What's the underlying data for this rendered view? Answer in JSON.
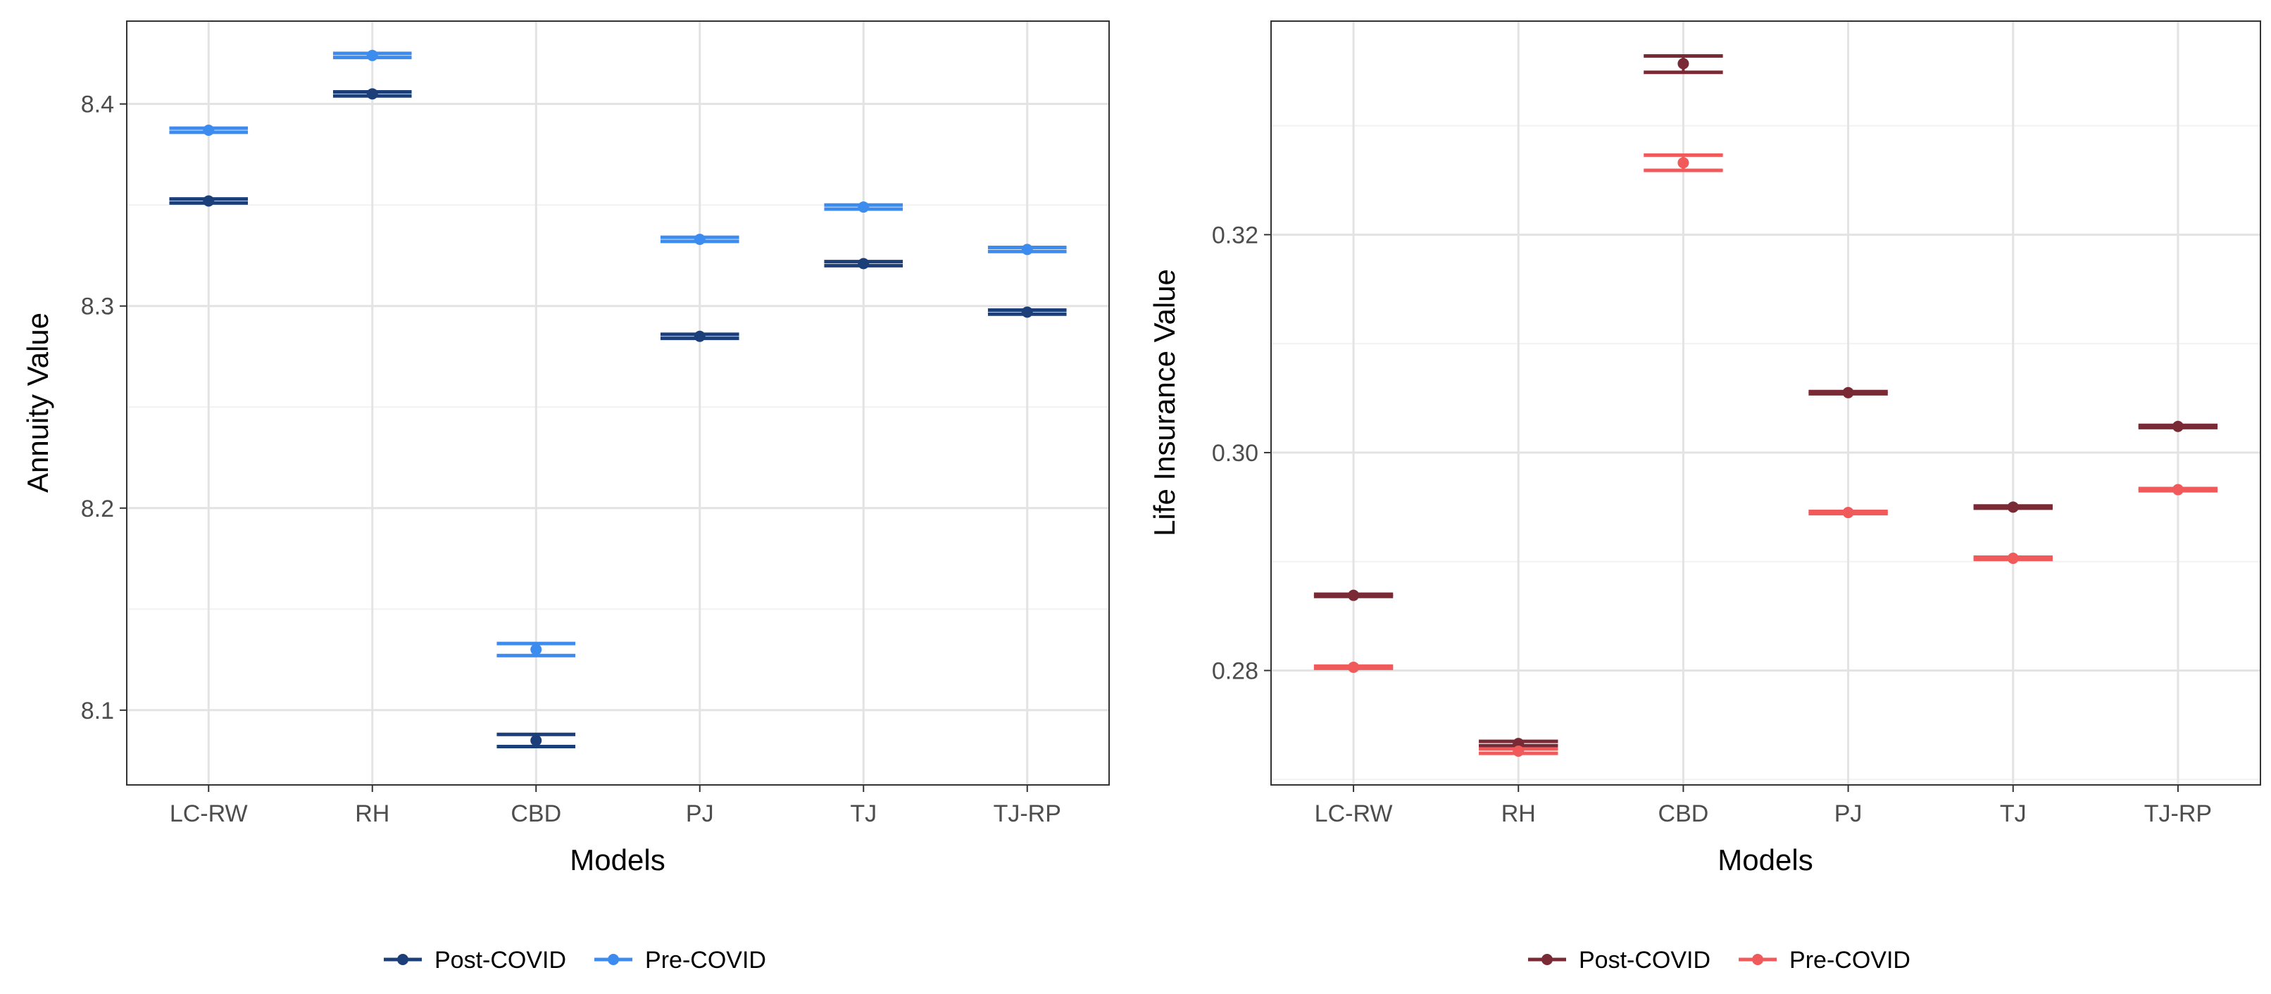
{
  "chart_data": [
    {
      "type": "errorbar",
      "title": "",
      "xlabel": "Models",
      "ylabel": "Annuity Value",
      "categories": [
        "LC-RW",
        "RH",
        "CBD",
        "PJ",
        "TJ",
        "TJ-RP"
      ],
      "ylim": [
        8.063,
        8.441
      ],
      "yticks": [
        8.1,
        8.2,
        8.3,
        8.4
      ],
      "ytick_labels": [
        "8.1",
        "8.2",
        "8.3",
        "8.4"
      ],
      "grid": true,
      "legend_position": "bottom",
      "series": [
        {
          "name": "Post-COVID",
          "color": "#1c3f7a",
          "values": [
            8.352,
            8.405,
            8.085,
            8.285,
            8.321,
            8.297
          ],
          "lower": [
            8.351,
            8.404,
            8.082,
            8.284,
            8.32,
            8.296
          ],
          "upper": [
            8.353,
            8.406,
            8.088,
            8.286,
            8.322,
            8.298
          ]
        },
        {
          "name": "Pre-COVID",
          "color": "#3c8cf0",
          "values": [
            8.387,
            8.424,
            8.13,
            8.333,
            8.349,
            8.328
          ],
          "lower": [
            8.386,
            8.423,
            8.127,
            8.332,
            8.348,
            8.327
          ],
          "upper": [
            8.388,
            8.425,
            8.133,
            8.334,
            8.35,
            8.329
          ]
        }
      ]
    },
    {
      "type": "errorbar",
      "title": "",
      "xlabel": "Models",
      "ylabel": "Life Insurance Value",
      "categories": [
        "LC-RW",
        "RH",
        "CBD",
        "PJ",
        "TJ",
        "TJ-RP"
      ],
      "ylim": [
        0.2695,
        0.3396
      ],
      "yticks": [
        0.28,
        0.3,
        0.32
      ],
      "ytick_labels": [
        "0.28",
        "0.30",
        "0.32"
      ],
      "grid": true,
      "legend_position": "bottom",
      "series": [
        {
          "name": "Post-COVID",
          "color": "#7a2a35",
          "values": [
            0.2869,
            0.2733,
            0.3357,
            0.3055,
            0.295,
            0.3024
          ],
          "lower": [
            0.2868,
            0.2731,
            0.3349,
            0.3054,
            0.2949,
            0.3023
          ],
          "upper": [
            0.287,
            0.2735,
            0.3364,
            0.3056,
            0.2951,
            0.3025
          ]
        },
        {
          "name": "Pre-COVID",
          "color": "#f05a5a",
          "values": [
            0.2803,
            0.2726,
            0.3266,
            0.2945,
            0.2903,
            0.2966
          ],
          "lower": [
            0.2802,
            0.2724,
            0.3259,
            0.2944,
            0.2902,
            0.2965
          ],
          "upper": [
            0.2804,
            0.2728,
            0.3273,
            0.2946,
            0.2904,
            0.2967
          ]
        }
      ]
    }
  ]
}
